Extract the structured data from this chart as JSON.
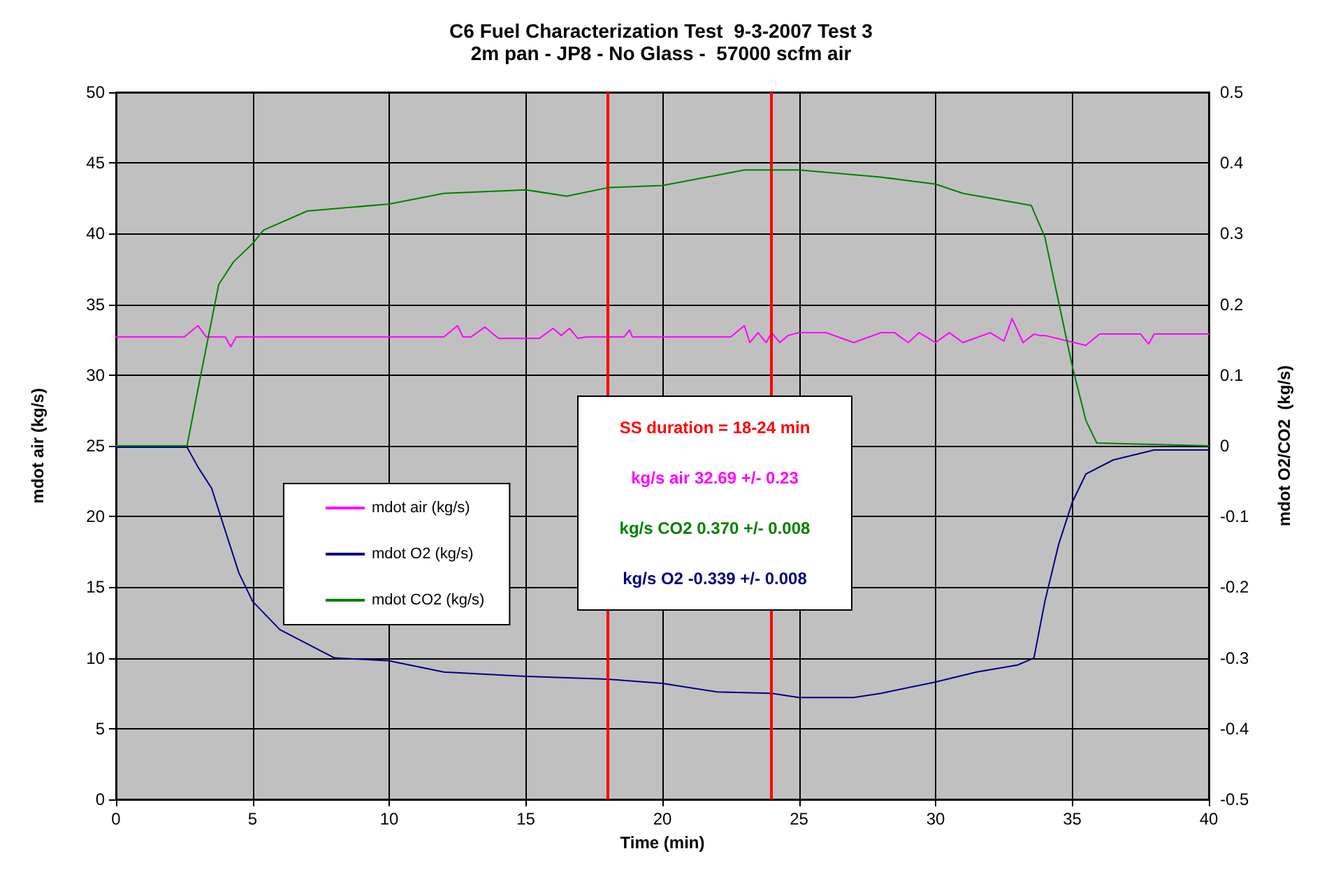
{
  "chart_data": {
    "type": "line",
    "title": "C6 Fuel Characterization Test  9-3-2007 Test 3",
    "subtitle": "2m pan - JP8 - No Glass -  57000 scfm air",
    "xlabel": "Time (min)",
    "ylabel": "mdot air (kg/s)",
    "y2label": "mdot O2/CO2  (kg/s)",
    "xlim": [
      0,
      40
    ],
    "xticks": [
      0,
      5,
      10,
      15,
      20,
      25,
      30,
      35,
      40
    ],
    "ylim": [
      0,
      50
    ],
    "yticks": [
      0,
      5,
      10,
      15,
      20,
      25,
      30,
      35,
      40,
      45,
      50
    ],
    "y2lim": [
      -0.5,
      0.5
    ],
    "y2ticks": [
      -0.5,
      -0.4,
      -0.3,
      -0.2,
      -0.1,
      0,
      0.1,
      0.2,
      0.3,
      0.4,
      0.5
    ],
    "grid": true,
    "legend": "left",
    "marker": "none",
    "line_style": "solid",
    "series": [
      {
        "name": "mdot air (kg/s)",
        "color": "#ff00ff",
        "x": [
          0,
          2.5,
          3.0,
          3.3,
          4.0,
          4.2,
          4.4,
          12.0,
          12.5,
          12.7,
          13.0,
          13.5,
          14.0,
          14.5,
          15.5,
          16.0,
          16.3,
          16.6,
          16.9,
          17.2,
          18.6,
          18.8,
          18.9,
          22.5,
          23.0,
          23.2,
          23.5,
          23.8,
          24.0,
          24.3,
          24.6,
          25.0,
          26.0,
          27.0,
          28.0,
          28.5,
          29.0,
          29.4,
          30.0,
          30.5,
          31.0,
          32.0,
          32.5,
          32.8,
          33.2,
          33.6,
          33.8,
          34.0,
          35.5,
          36.0,
          37.5,
          37.8,
          38.0,
          40
        ],
        "values": [
          32.7,
          32.7,
          33.5,
          32.7,
          32.7,
          32.0,
          32.7,
          32.7,
          33.5,
          32.7,
          32.7,
          33.4,
          32.6,
          32.6,
          32.6,
          33.3,
          32.8,
          33.3,
          32.6,
          32.7,
          32.7,
          33.2,
          32.7,
          32.7,
          33.5,
          32.3,
          33.0,
          32.3,
          33.0,
          32.3,
          32.8,
          33.0,
          33.0,
          32.3,
          33.0,
          33.0,
          32.3,
          33.0,
          32.3,
          33.0,
          32.3,
          33.0,
          32.4,
          34.0,
          32.3,
          32.9,
          32.8,
          32.8,
          32.1,
          32.9,
          32.9,
          32.2,
          32.9,
          32.9
        ]
      },
      {
        "name": "mdot O2 (kg/s)",
        "color": "#000080",
        "axis": "y2",
        "x": [
          0,
          2.6,
          3.0,
          3.5,
          4.0,
          4.5,
          5.0,
          6.0,
          7.0,
          8.0,
          10.0,
          12.0,
          15.0,
          18.0,
          20.0,
          22.0,
          24.0,
          25.0,
          27.0,
          28.0,
          30.0,
          31.5,
          33.0,
          33.6,
          34.0,
          34.5,
          35.0,
          35.5,
          36.5,
          38.0,
          40
        ],
        "values": [
          -0.002,
          -0.002,
          -0.03,
          -0.06,
          -0.12,
          -0.18,
          -0.22,
          -0.26,
          -0.28,
          -0.3,
          -0.304,
          -0.32,
          -0.326,
          -0.33,
          -0.336,
          -0.348,
          -0.35,
          -0.356,
          -0.356,
          -0.35,
          -0.334,
          -0.32,
          -0.31,
          -0.3,
          -0.22,
          -0.14,
          -0.08,
          -0.04,
          -0.02,
          -0.006,
          -0.006
        ]
      },
      {
        "name": "mdot CO2 (kg/s)",
        "color": "#008000",
        "axis": "y2",
        "x": [
          0,
          2.6,
          3.0,
          3.76,
          4.3,
          5.0,
          5.4,
          7.0,
          10.0,
          12.0,
          15.0,
          16.5,
          18.0,
          20.0,
          23.0,
          25.0,
          28.0,
          30.0,
          31.0,
          33.5,
          34.0,
          35.0,
          35.5,
          35.9,
          40
        ],
        "values": [
          0,
          0,
          0.08,
          0.228,
          0.26,
          0.286,
          0.305,
          0.332,
          0.342,
          0.357,
          0.362,
          0.353,
          0.365,
          0.368,
          0.39,
          0.39,
          0.38,
          0.37,
          0.357,
          0.34,
          0.295,
          0.113,
          0.036,
          0.004,
          0
        ]
      }
    ],
    "ref_lines": [
      {
        "axis": "x",
        "value": 18,
        "color": "#ff0000"
      },
      {
        "axis": "x",
        "value": 24,
        "color": "#ff0000"
      }
    ],
    "annotations": [
      "SS duration = 18-24  min",
      "kg/s air 32.69 +/- 0.23",
      "kg/s CO2  0.370 +/- 0.008",
      "kg/s O2 -0.339 +/- 0.008"
    ]
  }
}
